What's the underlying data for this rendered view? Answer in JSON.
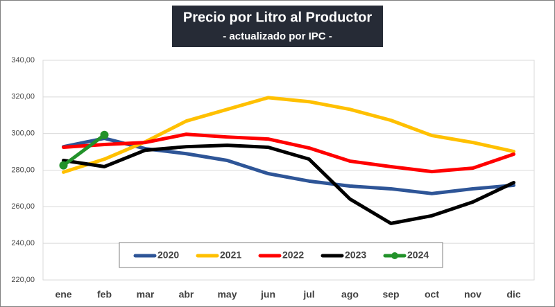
{
  "chart_data": {
    "type": "line",
    "title": "Precio por Litro al Productor",
    "subtitle": "- actualizado por IPC -",
    "categories": [
      "ene",
      "feb",
      "mar",
      "abr",
      "may",
      "jun",
      "jul",
      "ago",
      "sep",
      "oct",
      "nov",
      "dic"
    ],
    "series": [
      {
        "name": "2020",
        "color": "#2e5597",
        "values": [
          292.8,
          297.4,
          291.7,
          289.0,
          285.3,
          278.1,
          274.0,
          271.3,
          269.8,
          267.2,
          269.8,
          271.7
        ]
      },
      {
        "name": "2021",
        "color": "#ffc000",
        "values": [
          278.9,
          286.0,
          295.5,
          306.8,
          313.2,
          319.6,
          317.4,
          313.2,
          307.2,
          298.9,
          295.1,
          290.2
        ]
      },
      {
        "name": "2022",
        "color": "#ff0000",
        "values": [
          292.5,
          294.0,
          295.1,
          299.6,
          298.1,
          297.0,
          292.1,
          284.9,
          281.9,
          279.2,
          281.1,
          288.7
        ]
      },
      {
        "name": "2023",
        "color": "#000000",
        "values": [
          285.3,
          281.9,
          290.9,
          292.8,
          293.6,
          292.5,
          286.0,
          264.2,
          250.9,
          255.1,
          262.6,
          273.2
        ]
      },
      {
        "name": "2024",
        "color": "#22922a",
        "values": [
          282.6,
          299.2,
          null,
          null,
          null,
          null,
          null,
          null,
          null,
          null,
          null,
          null
        ]
      }
    ],
    "ylim": [
      220,
      340
    ],
    "yticks": [
      {
        "value": 220,
        "label": "220,00"
      },
      {
        "value": 240,
        "label": "240,00"
      },
      {
        "value": 260,
        "label": "260,00"
      },
      {
        "value": 280,
        "label": "280,00"
      },
      {
        "value": 300,
        "label": "300,00"
      },
      {
        "value": 320,
        "label": "320,00"
      },
      {
        "value": 340,
        "label": "340,00"
      }
    ],
    "grid": true,
    "legend": "bottom"
  }
}
